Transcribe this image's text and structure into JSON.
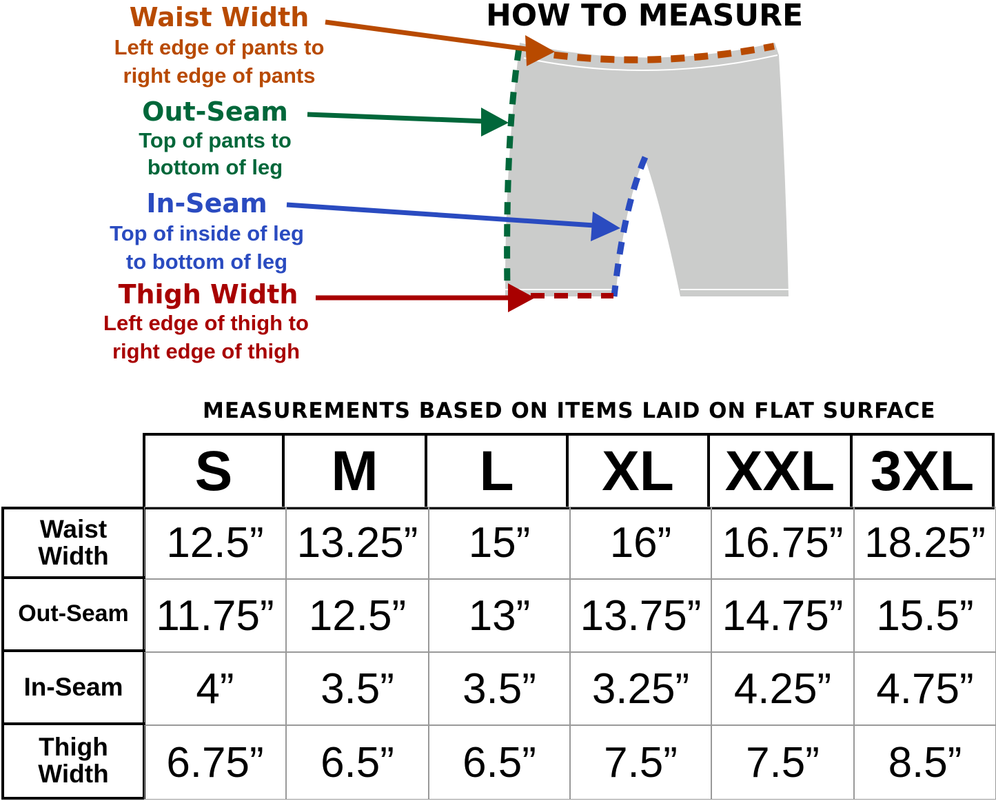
{
  "header": {
    "title": "HOW TO MEASURE"
  },
  "labels": [
    {
      "title": "Waist Width",
      "line1": "Left edge of pants to",
      "line2": "right edge of pants",
      "color": "#b84a00"
    },
    {
      "title": "Out-Seam",
      "line1": "Top of pants to",
      "line2": "bottom of leg",
      "color": "#00673a"
    },
    {
      "title": "In-Seam",
      "line1": "Top of inside of leg",
      "line2": "to bottom of leg",
      "color": "#2a4bc0"
    },
    {
      "title": "Thigh Width",
      "line1": "Left edge of thigh to",
      "line2": "right edge of thigh",
      "color": "#a80000"
    }
  ],
  "diagram": {
    "garment_color": "#cbcccb",
    "icon": "shorts-outline"
  },
  "table": {
    "caption": "MEASUREMENTS BASED ON ITEMS LAID ON FLAT SURFACE",
    "sizes": [
      "S",
      "M",
      "L",
      "XL",
      "XXL",
      "3XL"
    ],
    "rows": [
      {
        "label": "Waist Width",
        "values": [
          "12.5”",
          "13.25”",
          "15”",
          "16”",
          "16.75”",
          "18.25”"
        ]
      },
      {
        "label": "Out-Seam",
        "values": [
          "11.75”",
          "12.5”",
          "13”",
          "13.75”",
          "14.75”",
          "15.5”"
        ]
      },
      {
        "label": "In-Seam",
        "values": [
          "4”",
          "3.5”",
          "3.5”",
          "3.25”",
          "4.25”",
          "4.75”"
        ]
      },
      {
        "label": "Thigh Width",
        "values": [
          "6.75”",
          "6.5”",
          "6.5”",
          "7.5”",
          "7.5”",
          "8.5”"
        ]
      }
    ]
  }
}
